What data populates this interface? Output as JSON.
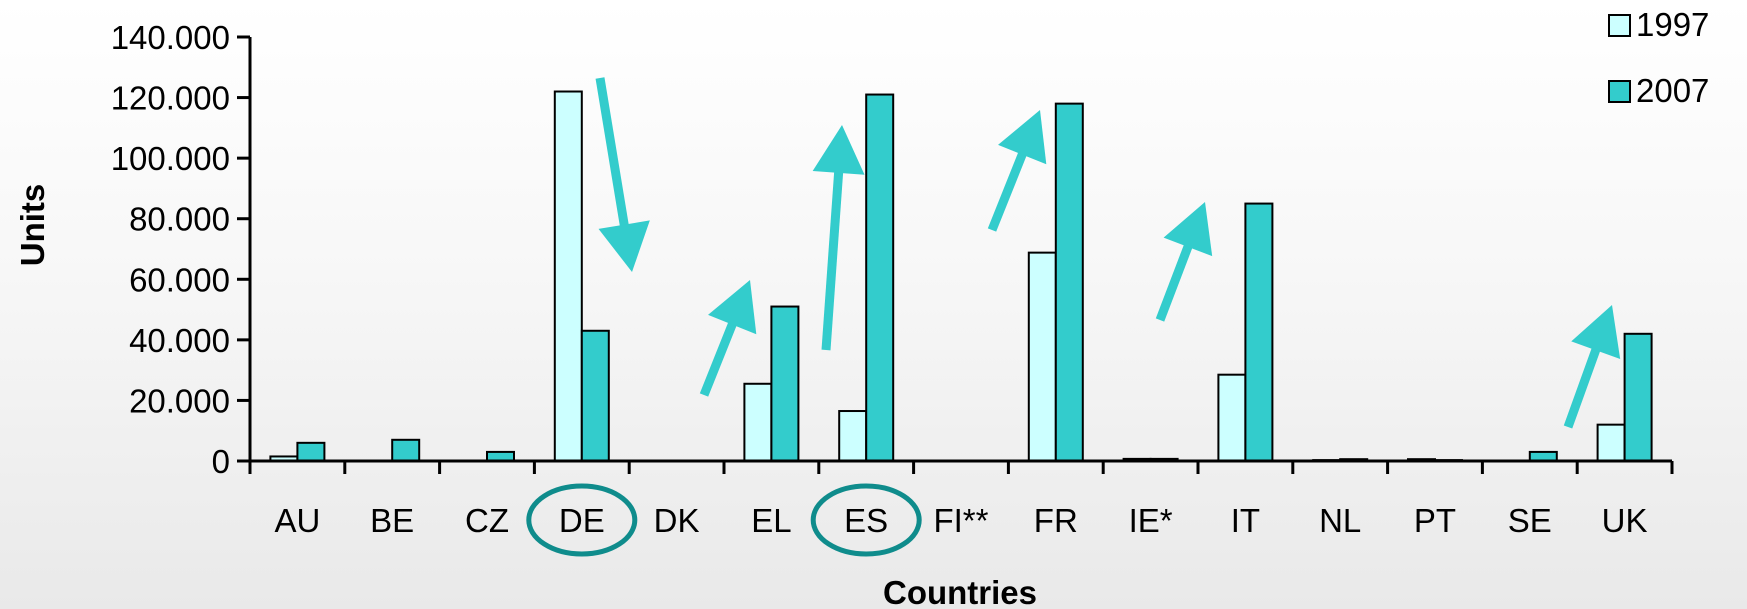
{
  "chart_data": {
    "type": "bar",
    "xlabel": "Countries",
    "ylabel": "Units",
    "ylim": [
      0,
      140000
    ],
    "y_ticks": [
      0,
      20000,
      40000,
      60000,
      80000,
      100000,
      120000,
      140000
    ],
    "y_tick_labels": [
      "0",
      "20.000",
      "40.000",
      "60.000",
      "80.000",
      "100.000",
      "120.000",
      "140.000"
    ],
    "categories": [
      "AU",
      "BE",
      "CZ",
      "DE",
      "DK",
      "EL",
      "ES",
      "FI**",
      "FR",
      "IE*",
      "IT",
      "NL",
      "PT",
      "SE",
      "UK"
    ],
    "series": [
      {
        "name": "1997",
        "color": "#ccffff",
        "values": [
          1500,
          0,
          0,
          122000,
          0,
          25500,
          16500,
          0,
          68800,
          700,
          28500,
          300,
          600,
          0,
          12000
        ]
      },
      {
        "name": "2007",
        "color": "#33cccc",
        "values": [
          6000,
          7000,
          3000,
          43000,
          0,
          51000,
          121000,
          0,
          118000,
          700,
          85000,
          600,
          300,
          3000,
          42000
        ]
      }
    ],
    "legend_position": "top-right",
    "grid": false,
    "highlighted_categories": [
      "DE",
      "ES"
    ],
    "annotations": {
      "arrow_color": "#33cccc",
      "highlight_ring_color": "#0f8c8c",
      "arrows": [
        {
          "category": "DE",
          "direction": "down"
        },
        {
          "category": "EL",
          "direction": "up"
        },
        {
          "category": "ES",
          "direction": "up"
        },
        {
          "category": "FR",
          "direction": "up"
        },
        {
          "category": "IT",
          "direction": "up"
        },
        {
          "category": "UK",
          "direction": "up"
        }
      ]
    }
  }
}
